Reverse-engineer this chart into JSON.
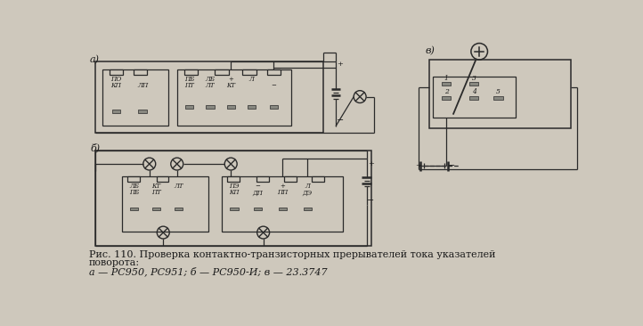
{
  "bg_color": "#cec8bc",
  "title_line1": "Рис. 110. Проверка контактно-транзисторных прерывателей тока указателей",
  "title_line2": "поворота:",
  "title_line3": "а — РС950, РС951; б — РС950-И; в — 23.3747",
  "label_a": "а)",
  "label_b": "б̆)",
  "label_v": "в)",
  "text_color": "#1a1a1a",
  "line_color": "#2a2a2a",
  "pin_fill": "#888880",
  "font_size_caption": 8.0
}
